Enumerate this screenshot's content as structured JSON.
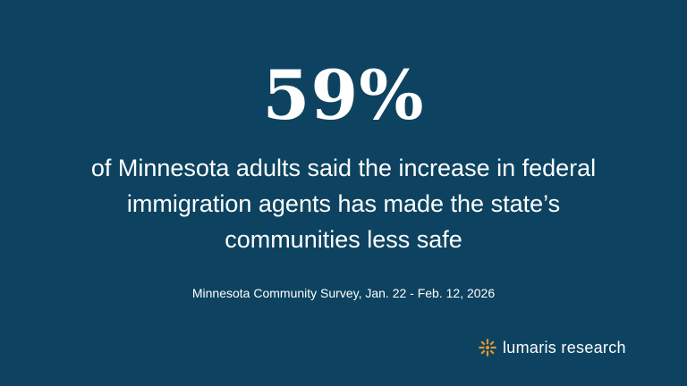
{
  "stat": {
    "value": "59%"
  },
  "statement": {
    "text": "of Minnesota adults said the increase in federal immigration agents has made the state’s communities less safe"
  },
  "source": {
    "text": "Minnesota Community Survey, Jan. 22 - Feb. 12, 2026"
  },
  "brand": {
    "name": "lumaris research",
    "logo_icon": "sunburst-logo-icon",
    "logo_color": "#e8962a"
  },
  "colors": {
    "background": "#0d4360",
    "text": "#ffffff",
    "accent": "#e8962a"
  }
}
